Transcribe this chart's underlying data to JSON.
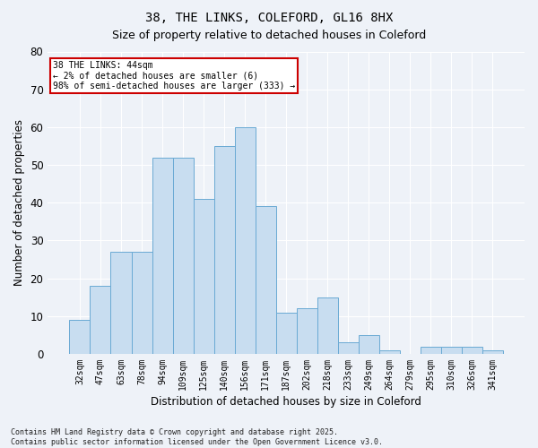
{
  "title1": "38, THE LINKS, COLEFORD, GL16 8HX",
  "title2": "Size of property relative to detached houses in Coleford",
  "xlabel": "Distribution of detached houses by size in Coleford",
  "ylabel": "Number of detached properties",
  "categories": [
    "32sqm",
    "47sqm",
    "63sqm",
    "78sqm",
    "94sqm",
    "109sqm",
    "125sqm",
    "140sqm",
    "156sqm",
    "171sqm",
    "187sqm",
    "202sqm",
    "218sqm",
    "233sqm",
    "249sqm",
    "264sqm",
    "279sqm",
    "295sqm",
    "310sqm",
    "326sqm",
    "341sqm"
  ],
  "values": [
    9,
    18,
    27,
    27,
    52,
    52,
    41,
    55,
    60,
    39,
    11,
    12,
    15,
    3,
    5,
    1,
    0,
    2,
    2,
    2,
    1
  ],
  "bar_color": "#c8ddf0",
  "bar_edge_color": "#6aaad4",
  "background_color": "#eef2f8",
  "grid_color": "#ffffff",
  "ylim": [
    0,
    80
  ],
  "yticks": [
    0,
    10,
    20,
    30,
    40,
    50,
    60,
    70,
    80
  ],
  "annotation_text": "38 THE LINKS: 44sqm\n← 2% of detached houses are smaller (6)\n98% of semi-detached houses are larger (333) →",
  "annotation_box_color": "#ffffff",
  "annotation_border_color": "#cc0000",
  "footer": "Contains HM Land Registry data © Crown copyright and database right 2025.\nContains public sector information licensed under the Open Government Licence v3.0."
}
